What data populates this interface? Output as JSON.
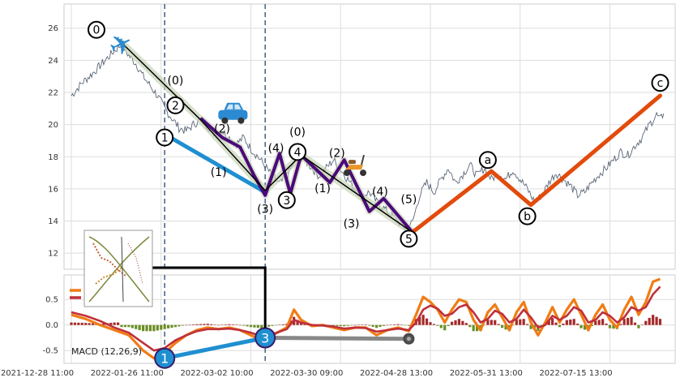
{
  "chart_data": [
    {
      "type": "line",
      "panel": "price",
      "ylim": [
        11,
        27.5
      ],
      "yticks": [
        12,
        14,
        16,
        18,
        20,
        22,
        24,
        26
      ],
      "grid": true,
      "price_series": [
        [
          0,
          21.8
        ],
        [
          3,
          22.6
        ],
        [
          6,
          23.2
        ],
        [
          9,
          23.9
        ],
        [
          12,
          24.6
        ],
        [
          14,
          25.0
        ],
        [
          16,
          24.3
        ],
        [
          18,
          23.8
        ],
        [
          20,
          23.0
        ],
        [
          22,
          22.4
        ],
        [
          24,
          21.8
        ],
        [
          26,
          21.0
        ],
        [
          28,
          20.4
        ],
        [
          30,
          19.8
        ],
        [
          32,
          19.6
        ],
        [
          34,
          20.0
        ],
        [
          36,
          20.3
        ],
        [
          38,
          19.9
        ],
        [
          40,
          19.4
        ],
        [
          42,
          19.6
        ],
        [
          44,
          19.2
        ],
        [
          46,
          18.8
        ],
        [
          48,
          19.2
        ],
        [
          50,
          18.5
        ],
        [
          52,
          18.0
        ],
        [
          54,
          17.4
        ],
        [
          56,
          16.8
        ],
        [
          58,
          16.3
        ],
        [
          60,
          16.8
        ],
        [
          62,
          17.6
        ],
        [
          63,
          18.1
        ],
        [
          65,
          17.8
        ],
        [
          67,
          17.3
        ],
        [
          69,
          16.8
        ],
        [
          71,
          17.3
        ],
        [
          73,
          17.8
        ],
        [
          75,
          17.2
        ],
        [
          77,
          16.6
        ],
        [
          79,
          16.0
        ],
        [
          81,
          15.6
        ],
        [
          83,
          15.8
        ],
        [
          85,
          15.2
        ],
        [
          87,
          14.8
        ],
        [
          89,
          14.4
        ],
        [
          91,
          14.0
        ],
        [
          93,
          13.6
        ],
        [
          95,
          13.9
        ],
        [
          97,
          15.6
        ],
        [
          99,
          16.4
        ],
        [
          101,
          15.8
        ],
        [
          103,
          16.6
        ],
        [
          105,
          17.3
        ],
        [
          107,
          16.4
        ],
        [
          109,
          16.9
        ],
        [
          111,
          17.5
        ],
        [
          113,
          16.8
        ],
        [
          115,
          17.3
        ],
        [
          117,
          16.6
        ],
        [
          119,
          17.0
        ],
        [
          121,
          16.6
        ],
        [
          123,
          17.2
        ],
        [
          125,
          16.6
        ],
        [
          127,
          16.0
        ],
        [
          129,
          15.2
        ],
        [
          131,
          15.6
        ],
        [
          133,
          16.4
        ],
        [
          135,
          17.0
        ],
        [
          137,
          16.6
        ],
        [
          139,
          16.2
        ],
        [
          141,
          15.6
        ],
        [
          143,
          15.8
        ],
        [
          145,
          16.4
        ],
        [
          147,
          16.9
        ],
        [
          149,
          17.3
        ],
        [
          151,
          17.8
        ],
        [
          153,
          18.3
        ],
        [
          155,
          18.1
        ],
        [
          157,
          18.7
        ],
        [
          159,
          19.2
        ],
        [
          161,
          20.0
        ],
        [
          163,
          20.6
        ],
        [
          164,
          20.3
        ],
        [
          165,
          20.7
        ]
      ],
      "wave_primary": {
        "color": "#000000",
        "points": [
          [
            14,
            25.1
          ],
          [
            36,
            20.3
          ],
          [
            54,
            15.9
          ],
          [
            64,
            18.1
          ],
          [
            95,
            13.3
          ]
        ]
      },
      "wave_sub_1": {
        "color": "#4b0a7a",
        "points": [
          [
            36,
            20.4
          ],
          [
            42,
            19.2
          ],
          [
            47,
            18.6
          ],
          [
            51,
            16.8
          ],
          [
            54,
            15.6
          ],
          [
            58,
            18.2
          ],
          [
            61,
            15.7
          ],
          [
            64,
            18.1
          ]
        ]
      },
      "wave_sub_2": {
        "color": "#4b0a7a",
        "points": [
          [
            64,
            18.1
          ],
          [
            72,
            16.4
          ],
          [
            76,
            17.8
          ],
          [
            83,
            14.6
          ],
          [
            87,
            15.4
          ],
          [
            95,
            13.3
          ]
        ]
      },
      "wave_blue": {
        "color": "#1f8fd1",
        "points": [
          [
            26,
            19.4
          ],
          [
            54,
            15.8
          ]
        ]
      },
      "wave_abc": {
        "color": "#e24b0c",
        "points": [
          [
            95,
            13.3
          ],
          [
            117,
            17.1
          ],
          [
            128,
            15.0
          ],
          [
            164,
            21.8
          ]
        ]
      },
      "wave_labels": [
        {
          "text": "0",
          "x": 7,
          "y": 25.9,
          "circle": true
        },
        {
          "text": "1",
          "x": 26,
          "y": 19.2,
          "circle": true
        },
        {
          "text": "2",
          "x": 29,
          "y": 21.2,
          "circle": true
        },
        {
          "text": "3",
          "x": 60,
          "y": 15.3,
          "circle": true
        },
        {
          "text": "4",
          "x": 63,
          "y": 18.3,
          "circle": true
        },
        {
          "text": "5",
          "x": 94,
          "y": 12.9,
          "circle": true
        },
        {
          "text": "a",
          "x": 116,
          "y": 17.8,
          "circle": true
        },
        {
          "text": "b",
          "x": 127,
          "y": 14.3,
          "circle": true
        },
        {
          "text": "c",
          "x": 164,
          "y": 22.6,
          "circle": true
        },
        {
          "text": "(0)",
          "x": 29,
          "y": 22.5,
          "circle": false
        },
        {
          "text": "(2)",
          "x": 42,
          "y": 19.5,
          "circle": false
        },
        {
          "text": "(1)",
          "x": 41,
          "y": 16.8,
          "circle": false
        },
        {
          "text": "(4)",
          "x": 57,
          "y": 18.3,
          "circle": false
        },
        {
          "text": "(3)",
          "x": 54,
          "y": 14.5,
          "circle": false
        },
        {
          "text": "(0)",
          "x": 63,
          "y": 19.3,
          "circle": false
        },
        {
          "text": "(2)",
          "x": 74,
          "y": 18.0,
          "circle": false
        },
        {
          "text": "(1)",
          "x": 70,
          "y": 15.8,
          "circle": false
        },
        {
          "text": "(4)",
          "x": 86,
          "y": 15.6,
          "circle": false
        },
        {
          "text": "(3)",
          "x": 78,
          "y": 13.6,
          "circle": false
        },
        {
          "text": "(5)",
          "x": 94,
          "y": 15.1,
          "circle": false
        }
      ],
      "vlines": [
        26,
        54
      ],
      "vline_color": "#4b6a8a",
      "icons": [
        {
          "name": "airplane-icon",
          "glyph": "✈",
          "color": "#2b8ad1",
          "x": 14,
          "y": 24.9
        },
        {
          "name": "car-icon",
          "glyph": "car",
          "color": "#2b8ad1",
          "x": 45,
          "y": 20.6
        },
        {
          "name": "scooter-icon",
          "glyph": "scooter",
          "color": "#e8962a",
          "x": 79,
          "y": 17.3
        }
      ]
    },
    {
      "type": "line",
      "panel": "macd",
      "ylim": [
        -0.75,
        0.98
      ],
      "yticks": [
        -0.5,
        0.0,
        0.5
      ],
      "x_ticklabels": [
        "2021-12-28 11:00",
        "2022-01-26 11:00",
        "2022-03-02 10:00",
        "2022-03-30 09:00",
        "2022-04-28 13:00",
        "2022-05-31 13:00",
        "2022-07-15 13:00"
      ],
      "legend_label": "MACD (12,26,9)",
      "macd_line": [
        [
          0,
          0.2
        ],
        [
          4,
          0.12
        ],
        [
          8,
          0.0
        ],
        [
          12,
          -0.1
        ],
        [
          16,
          -0.2
        ],
        [
          20,
          -0.5
        ],
        [
          23,
          -0.65
        ],
        [
          26,
          -0.55
        ],
        [
          29,
          -0.35
        ],
        [
          32,
          -0.2
        ],
        [
          35,
          -0.1
        ],
        [
          38,
          -0.05
        ],
        [
          41,
          -0.08
        ],
        [
          44,
          -0.05
        ],
        [
          47,
          -0.1
        ],
        [
          50,
          -0.2
        ],
        [
          53,
          -0.3
        ],
        [
          56,
          -0.2
        ],
        [
          60,
          -0.05
        ],
        [
          62,
          0.3
        ],
        [
          64,
          0.1
        ],
        [
          67,
          -0.02
        ],
        [
          70,
          0.0
        ],
        [
          73,
          -0.05
        ],
        [
          76,
          -0.1
        ],
        [
          79,
          -0.05
        ],
        [
          82,
          -0.05
        ],
        [
          85,
          -0.2
        ],
        [
          88,
          -0.1
        ],
        [
          91,
          -0.05
        ],
        [
          94,
          -0.12
        ],
        [
          96,
          0.2
        ],
        [
          98,
          0.55
        ],
        [
          100,
          0.45
        ],
        [
          102,
          0.3
        ],
        [
          104,
          0.05
        ],
        [
          106,
          0.3
        ],
        [
          108,
          0.5
        ],
        [
          110,
          0.45
        ],
        [
          112,
          0.1
        ],
        [
          114,
          -0.1
        ],
        [
          116,
          0.25
        ],
        [
          118,
          0.4
        ],
        [
          120,
          0.15
        ],
        [
          122,
          -0.1
        ],
        [
          124,
          0.25
        ],
        [
          126,
          0.45
        ],
        [
          128,
          0.05
        ],
        [
          130,
          -0.2
        ],
        [
          132,
          0.05
        ],
        [
          134,
          0.35
        ],
        [
          136,
          0.05
        ],
        [
          138,
          0.3
        ],
        [
          140,
          0.5
        ],
        [
          142,
          0.2
        ],
        [
          144,
          -0.1
        ],
        [
          146,
          0.2
        ],
        [
          148,
          0.4
        ],
        [
          150,
          0.1
        ],
        [
          152,
          -0.05
        ],
        [
          154,
          0.3
        ],
        [
          156,
          0.55
        ],
        [
          158,
          0.2
        ],
        [
          160,
          0.45
        ],
        [
          162,
          0.85
        ],
        [
          164,
          0.9
        ]
      ],
      "signal_line": [
        [
          0,
          0.25
        ],
        [
          4,
          0.18
        ],
        [
          8,
          0.08
        ],
        [
          12,
          -0.05
        ],
        [
          16,
          -0.15
        ],
        [
          20,
          -0.35
        ],
        [
          23,
          -0.5
        ],
        [
          26,
          -0.45
        ],
        [
          29,
          -0.3
        ],
        [
          32,
          -0.2
        ],
        [
          35,
          -0.12
        ],
        [
          38,
          -0.08
        ],
        [
          41,
          -0.08
        ],
        [
          44,
          -0.07
        ],
        [
          47,
          -0.1
        ],
        [
          50,
          -0.15
        ],
        [
          53,
          -0.22
        ],
        [
          56,
          -0.18
        ],
        [
          60,
          -0.08
        ],
        [
          62,
          0.1
        ],
        [
          64,
          0.05
        ],
        [
          67,
          0.0
        ],
        [
          70,
          -0.01
        ],
        [
          73,
          -0.03
        ],
        [
          76,
          -0.07
        ],
        [
          79,
          -0.05
        ],
        [
          82,
          -0.06
        ],
        [
          85,
          -0.13
        ],
        [
          88,
          -0.1
        ],
        [
          91,
          -0.07
        ],
        [
          94,
          -0.1
        ],
        [
          96,
          0.05
        ],
        [
          98,
          0.3
        ],
        [
          100,
          0.38
        ],
        [
          102,
          0.32
        ],
        [
          104,
          0.18
        ],
        [
          106,
          0.22
        ],
        [
          108,
          0.35
        ],
        [
          110,
          0.4
        ],
        [
          112,
          0.25
        ],
        [
          114,
          0.05
        ],
        [
          116,
          0.12
        ],
        [
          118,
          0.28
        ],
        [
          120,
          0.22
        ],
        [
          122,
          0.05
        ],
        [
          124,
          0.12
        ],
        [
          126,
          0.3
        ],
        [
          128,
          0.15
        ],
        [
          130,
          -0.05
        ],
        [
          132,
          0.0
        ],
        [
          134,
          0.18
        ],
        [
          136,
          0.1
        ],
        [
          138,
          0.18
        ],
        [
          140,
          0.35
        ],
        [
          142,
          0.28
        ],
        [
          144,
          0.05
        ],
        [
          146,
          0.1
        ],
        [
          148,
          0.25
        ],
        [
          150,
          0.18
        ],
        [
          152,
          0.05
        ],
        [
          154,
          0.15
        ],
        [
          156,
          0.35
        ],
        [
          158,
          0.28
        ],
        [
          160,
          0.35
        ],
        [
          162,
          0.6
        ],
        [
          164,
          0.75
        ]
      ],
      "macd_color": "#f07c14",
      "signal_color": "#c0303a",
      "hist_pos_color": "#a52a2a",
      "hist_neg_color": "#6b8e23",
      "blue_divergence": {
        "color": "#1f8fd1",
        "points": [
          [
            26,
            -0.65
          ],
          [
            54,
            -0.25
          ]
        ],
        "labels": [
          "1",
          "3"
        ]
      },
      "gray_line": {
        "color": "#888888",
        "points": [
          [
            54,
            -0.25
          ],
          [
            94,
            -0.27
          ]
        ]
      },
      "connector_color": "#000000"
    }
  ]
}
